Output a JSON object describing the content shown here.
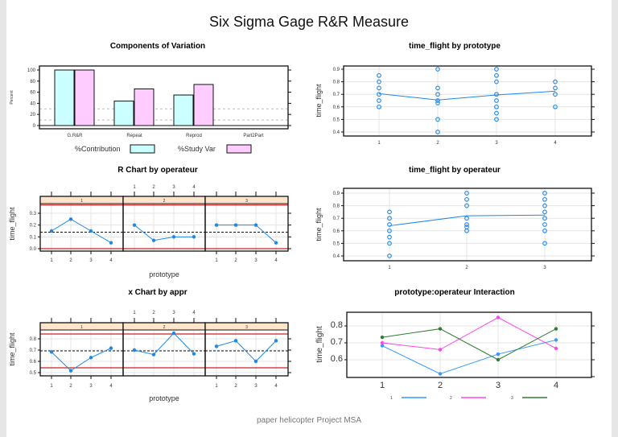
{
  "title": "Six Sigma Gage R&R Measure",
  "footer": "paper helicopter Project MSA",
  "colors": {
    "contribution": "#ccffff",
    "study_var": "#ffccff",
    "series_blue": "#1e88e5",
    "limit_red": "#cc2222",
    "strip": "#ffe5cc",
    "op1": "#3399ff",
    "op2": "#ff44ee",
    "op3": "#2e7d32"
  },
  "chart_data": [
    {
      "type": "bar",
      "title": "Components of Variation",
      "ylabel": "Percent",
      "categories": [
        "G.R&R",
        "Repeat",
        "Reprod",
        "Part2Part"
      ],
      "series": [
        {
          "name": "%Contribution",
          "values": [
            100,
            44,
            55,
            0
          ]
        },
        {
          "name": "%Study Var",
          "values": [
            100,
            66,
            74,
            0
          ]
        }
      ],
      "yticks": [
        "0",
        "20",
        "40",
        "60",
        "80",
        "100"
      ],
      "ylim": [
        0,
        100
      ],
      "reference_lines": [
        10,
        30
      ],
      "legend": "bottom"
    },
    {
      "type": "scatter",
      "title": "time_flight by prototype",
      "ylabel": "time_flight",
      "categories": [
        "1",
        "2",
        "3",
        "4"
      ],
      "points": [
        [
          0.85,
          0.8,
          0.75,
          0.7,
          0.65,
          0.6
        ],
        [
          0.9,
          0.75,
          0.7,
          0.65,
          0.63,
          0.5,
          0.4
        ],
        [
          0.9,
          0.85,
          0.8,
          0.7,
          0.65,
          0.6,
          0.55,
          0.5
        ],
        [
          0.8,
          0.75,
          0.7,
          0.6
        ]
      ],
      "means": [
        0.705,
        0.655,
        0.695,
        0.725
      ],
      "yticks": [
        "0.4",
        "0.5",
        "0.6",
        "0.7",
        "0.8",
        "0.9"
      ],
      "ylim": [
        0.4,
        0.9
      ],
      "grid": true
    },
    {
      "type": "line",
      "title": "R Chart by operateur",
      "xlabel": "prototype",
      "ylabel": "time_flight",
      "panels": [
        "1",
        "2",
        "3"
      ],
      "categories": [
        "1",
        "2",
        "3",
        "4"
      ],
      "series": [
        [
          0.15,
          0.25,
          0.15,
          0.05
        ],
        [
          0.2,
          0.07,
          0.1,
          0.1
        ],
        [
          0.2,
          0.2,
          0.2,
          0.05
        ]
      ],
      "ucl": 0.37,
      "center": 0.14,
      "lcl": 0.0,
      "yticks": [
        "0.0",
        "0.1",
        "0.2",
        "0.3"
      ],
      "grid": true
    },
    {
      "type": "scatter",
      "title": "time_flight by operateur",
      "ylabel": "time_flight",
      "categories": [
        "1",
        "2",
        "3"
      ],
      "points": [
        [
          0.75,
          0.7,
          0.65,
          0.6,
          0.55,
          0.5,
          0.4
        ],
        [
          0.9,
          0.85,
          0.8,
          0.7,
          0.65,
          0.63,
          0.6
        ],
        [
          0.9,
          0.85,
          0.8,
          0.75,
          0.7,
          0.65,
          0.6,
          0.5
        ]
      ],
      "means": [
        0.64,
        0.72,
        0.725
      ],
      "yticks": [
        "0.4",
        "0.5",
        "0.6",
        "0.7",
        "0.8",
        "0.9"
      ],
      "ylim": [
        0.4,
        0.9
      ],
      "grid": true
    },
    {
      "type": "line",
      "title": "x Chart by appr",
      "xlabel": "prototype",
      "ylabel": "time_flight",
      "panels": [
        "1",
        "2",
        "3"
      ],
      "categories": [
        "1",
        "2",
        "3",
        "4"
      ],
      "series": [
        [
          0.683,
          0.517,
          0.633,
          0.717
        ],
        [
          0.7,
          0.66,
          0.85,
          0.667
        ],
        [
          0.733,
          0.783,
          0.6,
          0.783
        ]
      ],
      "ucl": 0.843,
      "center": 0.693,
      "lcl": 0.543,
      "yticks": [
        "0.5",
        "0.6",
        "0.7",
        "0.8"
      ],
      "grid": true
    },
    {
      "type": "line",
      "title": "prototype:operateur Interaction",
      "ylabel": "time_flight",
      "categories": [
        "1",
        "2",
        "3",
        "4"
      ],
      "series": [
        {
          "name": "1",
          "values": [
            0.683,
            0.517,
            0.633,
            0.717
          ]
        },
        {
          "name": "2",
          "values": [
            0.7,
            0.66,
            0.85,
            0.667
          ]
        },
        {
          "name": "3",
          "values": [
            0.733,
            0.783,
            0.6,
            0.783
          ]
        }
      ],
      "yticks": [
        "0.6",
        "0.7",
        "0.8"
      ],
      "legend": "bottom",
      "grid": true
    }
  ]
}
